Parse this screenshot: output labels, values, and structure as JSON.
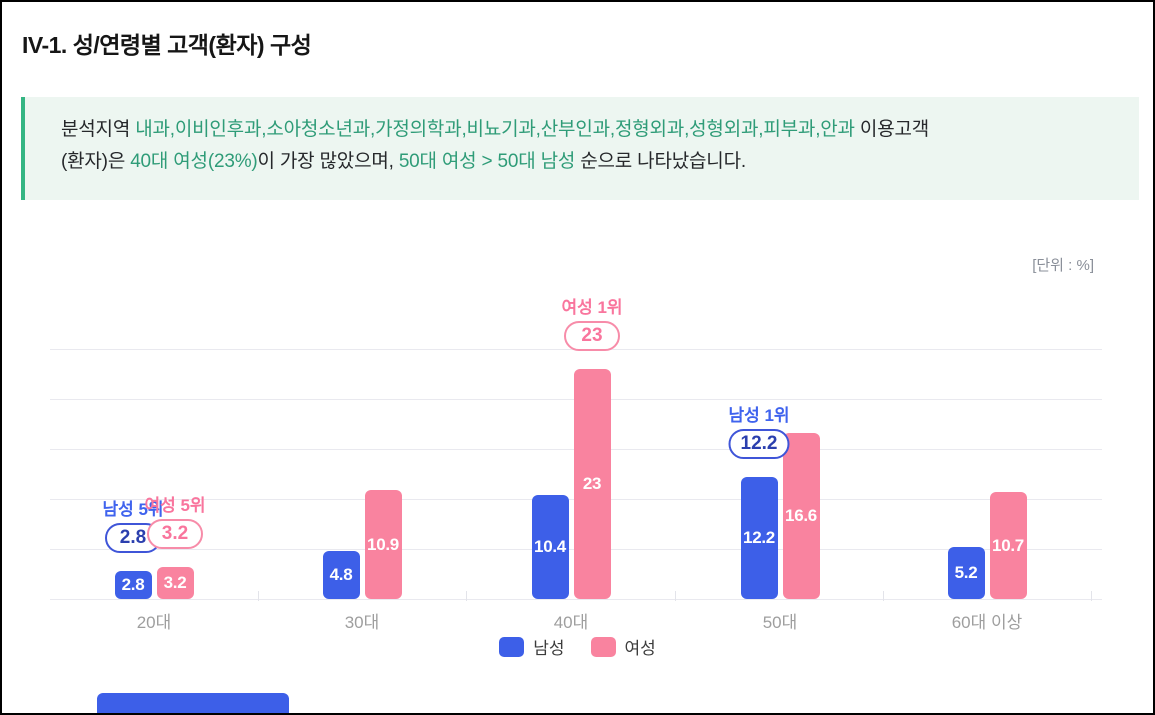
{
  "title": "IV-1. 성/연령별 고객(환자) 구성",
  "unit_label": "[단위 : %]",
  "callout": {
    "bg": "#EDF6F1",
    "accent": "#35B583",
    "lines": [
      [
        {
          "t": "분석지역 ",
          "c": "dark"
        },
        {
          "t": "내과,이비인후과,소아청소년과,가정의학과,비뇨기과,산부인과,정형외과,성형외과,피부과,안과",
          "c": "green"
        },
        {
          "t": " 이용고객",
          "c": "dark"
        }
      ],
      [
        {
          "t": "(환자)은 ",
          "c": "dark"
        },
        {
          "t": "40대 여성(23%)",
          "c": "green"
        },
        {
          "t": "이 가장 많았으며, ",
          "c": "dark"
        },
        {
          "t": "50대 여성 > 50대 남성",
          "c": "green"
        },
        {
          "t": " 순으로 나타났습니다.",
          "c": "dark"
        }
      ]
    ]
  },
  "chart_data": {
    "type": "bar",
    "title": "",
    "xlabel": "",
    "ylabel": "",
    "unit": "%",
    "categories": [
      "20대",
      "30대",
      "40대",
      "50대",
      "60대 이상"
    ],
    "series": [
      {
        "id": "male",
        "name": "남성",
        "color": "#3D5FE8",
        "values": [
          2.8,
          4.8,
          10.4,
          12.2,
          5.2
        ]
      },
      {
        "id": "female",
        "name": "여성",
        "color": "#F9839F",
        "values": [
          3.2,
          10.9,
          23,
          16.6,
          10.7
        ]
      }
    ],
    "ylim": [
      0,
      25
    ],
    "grid": true,
    "grid_step": 5,
    "legend_position": "bottom",
    "annotations": [
      {
        "series": "male",
        "category_index": 0,
        "label": "남성 5위",
        "badge": "2.8",
        "color": "blue"
      },
      {
        "series": "female",
        "category_index": 0,
        "label": "여성 5위",
        "badge": "3.2",
        "color": "pink"
      },
      {
        "series": "female",
        "category_index": 2,
        "label": "여성 1위",
        "badge": "23",
        "color": "pink"
      },
      {
        "series": "male",
        "category_index": 3,
        "label": "남성 1위",
        "badge": "12.2",
        "color": "blue"
      }
    ]
  },
  "colors": {
    "male_bar": "#3D5FE8",
    "female_bar": "#F9839F",
    "highlight_green": "#2F9C78",
    "dark_text": "#26282B",
    "grid": "#E9E9EF",
    "axis_label": "#9E9E9E",
    "unit_text": "#8A8F99",
    "partial_banner": "#3D5FE8"
  }
}
